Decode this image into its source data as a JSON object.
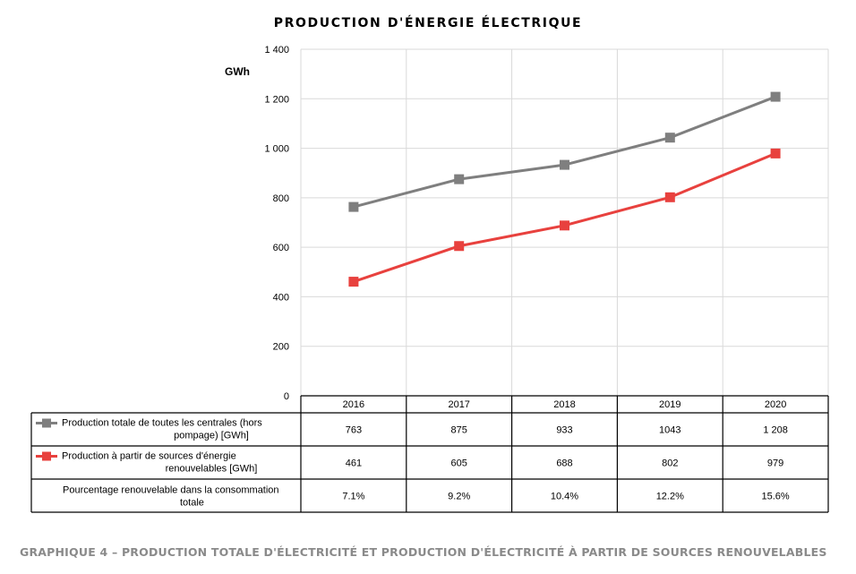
{
  "chart_data": {
    "type": "line",
    "title": "PRODUCTION D'ÉNERGIE ÉLECTRIQUE",
    "ylabel": "GWh",
    "ylim": [
      0,
      1400
    ],
    "yticks": [
      0,
      200,
      400,
      600,
      800,
      1000,
      1200,
      1400
    ],
    "ytick_labels": [
      "0",
      "200",
      "400",
      "600",
      "800",
      "1 000",
      "1 200",
      "1 400"
    ],
    "grid": true,
    "categories": [
      "2016",
      "2017",
      "2018",
      "2019",
      "2020"
    ],
    "series": [
      {
        "name_lines": [
          "Production totale de toutes les centrales (hors",
          "pompage) [GWh]"
        ],
        "values": [
          763,
          875,
          933,
          1043,
          1208
        ],
        "labels": [
          "763",
          "875",
          "933",
          "1043",
          "1 208"
        ],
        "color": "#7f7f7f"
      },
      {
        "name_lines": [
          "Production à partir de sources d'énergie",
          "renouvelables [GWh]"
        ],
        "values": [
          461,
          605,
          688,
          802,
          979
        ],
        "labels": [
          "461",
          "605",
          "688",
          "802",
          "979"
        ],
        "color": "#e8413e"
      }
    ],
    "table_extra_row": {
      "name_lines": [
        "Pourcentage renouvelable dans la consommation",
        "totale"
      ],
      "values": [
        "7.1%",
        "9.2%",
        "10.4%",
        "12.2%",
        "15.6%"
      ]
    }
  },
  "caption": "GRAPHIQUE 4 – PRODUCTION TOTALE D'ÉLECTRICITÉ ET PRODUCTION D'ÉLECTRICITÉ À PARTIR DE SOURCES RENOUVELABLES"
}
